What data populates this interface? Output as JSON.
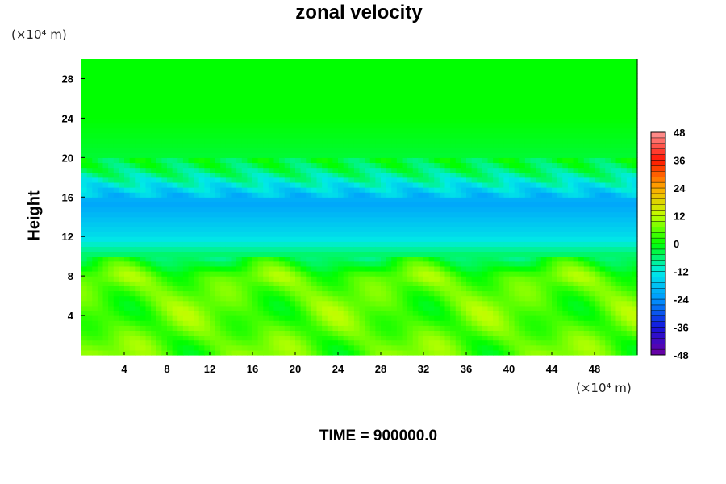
{
  "chart_data": {
    "type": "heatmap",
    "title": "zonal velocity",
    "xlabel": "",
    "ylabel": "Height",
    "x_unit": "(×10⁴ m)",
    "y_unit": "(×10⁴ m)",
    "xlim": [
      0,
      52
    ],
    "ylim": [
      0,
      30
    ],
    "x_ticks": [
      4,
      8,
      12,
      16,
      20,
      24,
      28,
      32,
      36,
      40,
      44,
      48
    ],
    "y_ticks": [
      4,
      8,
      12,
      16,
      20,
      24,
      28
    ],
    "colorbar": {
      "ticks": [
        48,
        36,
        24,
        12,
        0,
        -12,
        -24,
        -36,
        -48
      ],
      "range": [
        -48,
        48
      ]
    },
    "field_description_profile": [
      {
        "height": 0,
        "value": 6
      },
      {
        "height": 4,
        "value": 5
      },
      {
        "height": 8,
        "value": 6
      },
      {
        "height": 9.5,
        "value": -2
      },
      {
        "height": 12,
        "value": -14
      },
      {
        "height": 15.5,
        "value": -22
      },
      {
        "height": 18,
        "value": -8
      },
      {
        "height": 19.5,
        "value": -3
      },
      {
        "height": 24,
        "value": 0
      },
      {
        "height": 30,
        "value": 0
      }
    ],
    "footer": "TIME = 900000.0"
  }
}
